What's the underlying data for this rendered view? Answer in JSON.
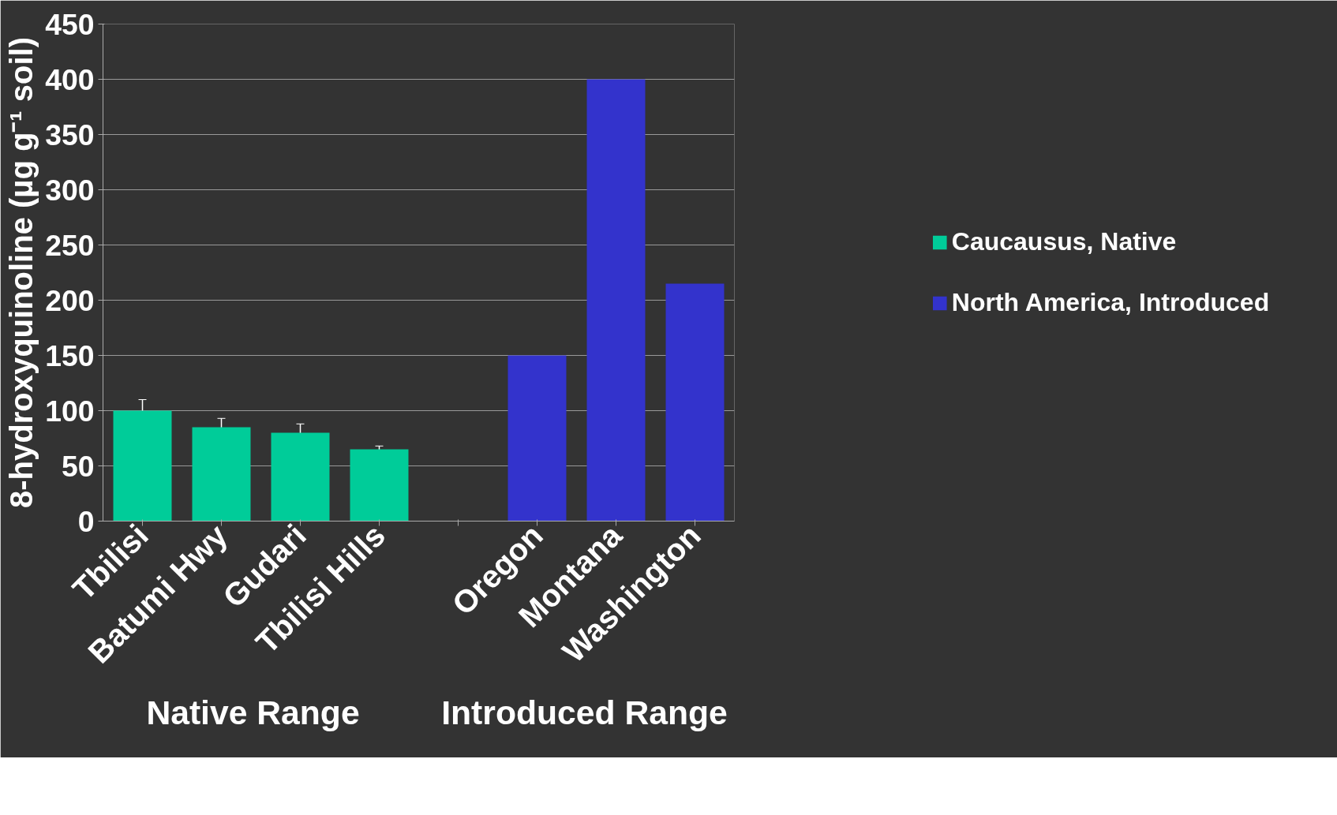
{
  "chart_data": {
    "type": "bar",
    "ylabel": "8-hydroxyquinoline (µg g⁻¹ soil)",
    "categories": [
      "Tbilisi",
      "Batumi Hwy",
      "Gudari",
      "Tbilisi Hills",
      null,
      "Oregon",
      "Montana",
      "Washington"
    ],
    "series": [
      {
        "name": "Caucausus, Native",
        "color": "#00cc99",
        "values": [
          100,
          85,
          80,
          65,
          null,
          null,
          null,
          null
        ],
        "errors": [
          10,
          8,
          8,
          3,
          null,
          null,
          null,
          null
        ]
      },
      {
        "name": "North America, Introduced",
        "color": "#3333cc",
        "values": [
          null,
          null,
          null,
          null,
          null,
          150,
          400,
          215
        ]
      }
    ],
    "ylim": [
      0,
      450
    ],
    "yticks": [
      0,
      50,
      100,
      150,
      200,
      250,
      300,
      350,
      400,
      450
    ],
    "grid": "y",
    "legend": "right",
    "annotations": [
      "Native Range",
      "Introduced Range"
    ]
  }
}
